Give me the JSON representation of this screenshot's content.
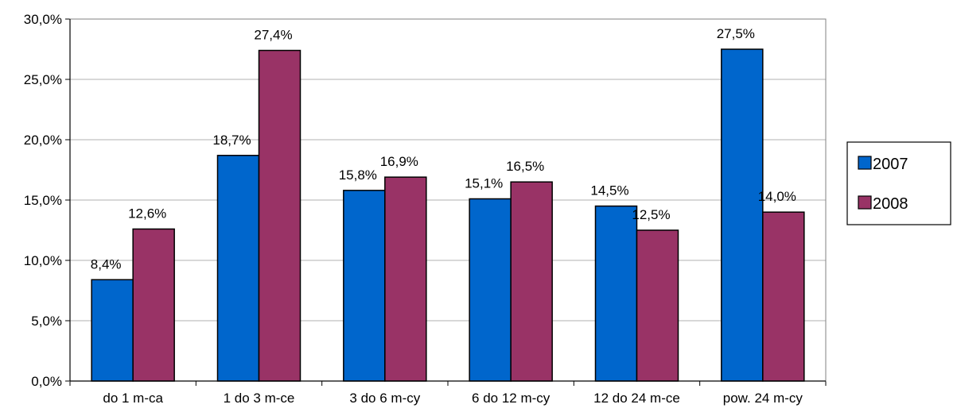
{
  "chart_data": {
    "type": "bar",
    "categories": [
      "do 1 m-ca",
      "1 do 3 m-ce",
      "3 do 6 m-cy",
      "6 do 12 m-cy",
      "12 do 24 m-ce",
      "pow. 24 m-cy"
    ],
    "series": [
      {
        "name": "2007",
        "color": "#0066CC",
        "values": [
          8.4,
          18.7,
          15.8,
          15.1,
          14.5,
          27.5
        ],
        "labels": [
          "8,4%",
          "18,7%",
          "15,8%",
          "15,1%",
          "14,5%",
          "27,5%"
        ]
      },
      {
        "name": "2008",
        "color": "#993366",
        "values": [
          12.6,
          27.4,
          16.9,
          16.5,
          12.5,
          14.0
        ],
        "labels": [
          "12,6%",
          "27,4%",
          "16,9%",
          "16,5%",
          "12,5%",
          "14,0%"
        ]
      }
    ],
    "ylim": [
      0,
      30
    ],
    "yticks": [
      0,
      5,
      10,
      15,
      20,
      25,
      30
    ],
    "ytick_labels": [
      "0,0%",
      "5,0%",
      "10,0%",
      "15,0%",
      "20,0%",
      "25,0%",
      "30,0%"
    ],
    "title": "",
    "xlabel": "",
    "ylabel": "",
    "grid": true,
    "legend_position": "right"
  }
}
